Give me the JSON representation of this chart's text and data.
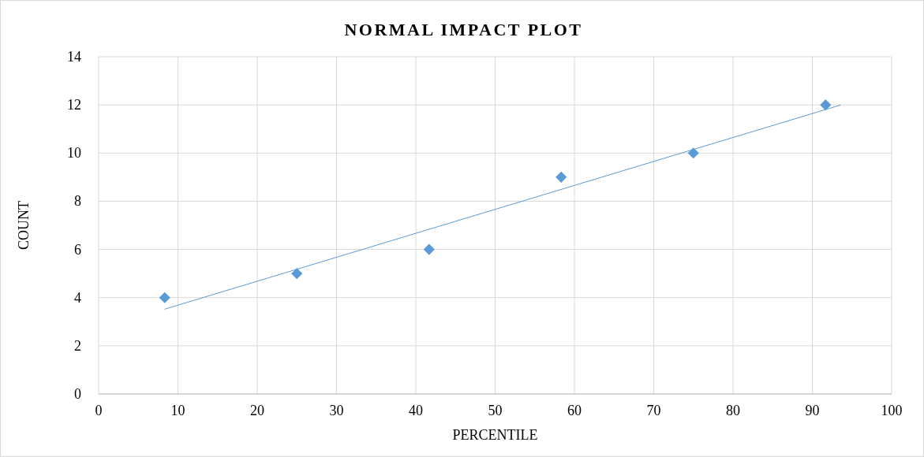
{
  "chart_data": {
    "type": "scatter",
    "title": "NORMAL IMPACT PLOT",
    "xlabel": "PERCENTILE",
    "ylabel": "COUNT",
    "xlim": [
      0,
      100
    ],
    "xticks": [
      0,
      10,
      20,
      30,
      40,
      50,
      60,
      70,
      80,
      90,
      100
    ],
    "ylim": [
      0,
      14
    ],
    "yticks": [
      0,
      2,
      4,
      6,
      8,
      10,
      12,
      14
    ],
    "grid": true,
    "marker": "diamond",
    "series": [
      {
        "color": "#5b9bd5",
        "x": [
          8.33,
          25,
          41.67,
          58.33,
          75,
          91.67
        ],
        "values": [
          4,
          5,
          6,
          9,
          10,
          12
        ]
      },
      {
        "type": "line",
        "marker": "none",
        "color": "#5b9bd5",
        "x": [
          8.33,
          93.6
        ],
        "values": [
          3.52,
          12.0
        ]
      }
    ]
  }
}
